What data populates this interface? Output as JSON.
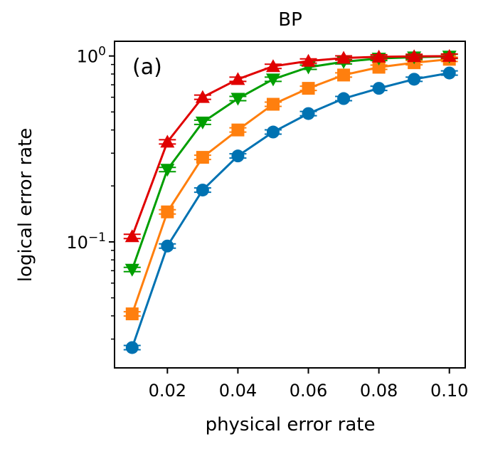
{
  "chart_data": {
    "type": "line",
    "title": "BP",
    "panel_label": "(a)",
    "xlabel": "physical error rate",
    "ylabel": "logical error rate",
    "xlim": [
      0.005,
      0.1045
    ],
    "ylim": [
      0.021,
      1.2
    ],
    "yscale": "log",
    "xticks": [
      0.02,
      0.04,
      0.06,
      0.08,
      0.1
    ],
    "xtick_labels": [
      "0.02",
      "0.04",
      "0.06",
      "0.08",
      "0.10"
    ],
    "yticks_major": [
      {
        "value": 0.1,
        "base": "10",
        "exp": "−1"
      },
      {
        "value": 1.0,
        "base": "10",
        "exp": "0"
      }
    ],
    "yticks_minor": [
      0.03,
      0.04,
      0.05,
      0.06,
      0.07,
      0.08,
      0.09,
      0.2,
      0.3,
      0.4,
      0.5,
      0.6,
      0.7,
      0.8,
      0.9
    ],
    "legend": "none",
    "grid": false,
    "x": [
      0.01,
      0.02,
      0.03,
      0.04,
      0.05,
      0.06,
      0.07,
      0.08,
      0.09,
      0.1
    ],
    "series": [
      {
        "color": "#0072b2",
        "marker": "circle",
        "values": [
          0.027,
          0.095,
          0.19,
          0.29,
          0.39,
          0.49,
          0.59,
          0.67,
          0.75,
          0.81
        ]
      },
      {
        "color": "#ff7f0e",
        "marker": "square",
        "values": [
          0.041,
          0.145,
          0.285,
          0.4,
          0.55,
          0.67,
          0.79,
          0.87,
          0.92,
          0.96
        ]
      },
      {
        "color": "#009e00",
        "marker": "triangle-down",
        "values": [
          0.071,
          0.245,
          0.44,
          0.59,
          0.75,
          0.87,
          0.93,
          0.97,
          0.985,
          0.995
        ]
      },
      {
        "color": "#e00000",
        "marker": "triangle-up",
        "values": [
          0.107,
          0.345,
          0.6,
          0.75,
          0.88,
          0.94,
          0.975,
          0.99,
          0.995,
          0.998
        ]
      }
    ]
  }
}
